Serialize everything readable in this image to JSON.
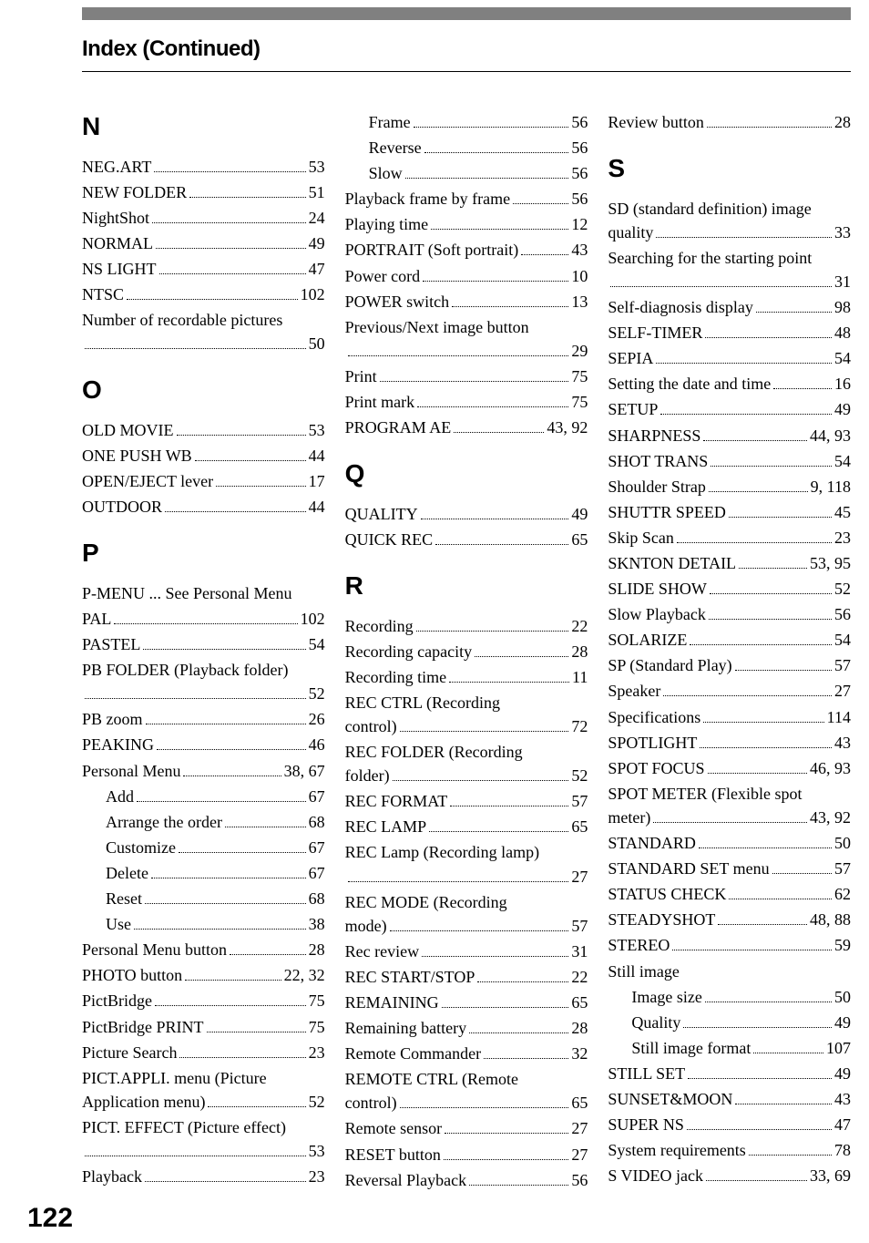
{
  "header": "Index (Continued)",
  "page_number": "122",
  "columns": [
    [
      {
        "type": "letter",
        "text": "N",
        "first": true
      },
      {
        "type": "entry",
        "term": "NEG.ART",
        "page": "53"
      },
      {
        "type": "entry",
        "term": "NEW FOLDER",
        "page": "51"
      },
      {
        "type": "entry",
        "term": "NightShot",
        "page": "24"
      },
      {
        "type": "entry",
        "term": "NORMAL",
        "page": "49"
      },
      {
        "type": "entry",
        "term": "NS LIGHT",
        "page": "47"
      },
      {
        "type": "entry",
        "term": "NTSC",
        "page": "102"
      },
      {
        "type": "wrap",
        "line1": "Number of recordable pictures",
        "page": "50"
      },
      {
        "type": "letter",
        "text": "O"
      },
      {
        "type": "entry",
        "term": "OLD MOVIE",
        "page": "53"
      },
      {
        "type": "entry",
        "term": "ONE PUSH WB",
        "page": "44"
      },
      {
        "type": "entry",
        "term": "OPEN/EJECT lever",
        "page": "17"
      },
      {
        "type": "entry",
        "term": "OUTDOOR",
        "page": "44"
      },
      {
        "type": "letter",
        "text": "P"
      },
      {
        "type": "see",
        "text": "P-MENU ... See Personal Menu"
      },
      {
        "type": "entry",
        "term": "PAL",
        "page": "102"
      },
      {
        "type": "entry",
        "term": "PASTEL",
        "page": "54"
      },
      {
        "type": "wrap",
        "line1": "PB FOLDER (Playback folder)",
        "page": "52"
      },
      {
        "type": "entry",
        "term": "PB zoom",
        "page": "26"
      },
      {
        "type": "entry",
        "term": "PEAKING",
        "page": "46"
      },
      {
        "type": "entry",
        "term": "Personal Menu",
        "page": "38, 67"
      },
      {
        "type": "entry",
        "term": "Add",
        "page": "67",
        "sub": true
      },
      {
        "type": "entry",
        "term": "Arrange the order",
        "page": "68",
        "sub": true
      },
      {
        "type": "entry",
        "term": "Customize",
        "page": "67",
        "sub": true
      },
      {
        "type": "entry",
        "term": "Delete",
        "page": "67",
        "sub": true
      },
      {
        "type": "entry",
        "term": "Reset",
        "page": "68",
        "sub": true
      },
      {
        "type": "entry",
        "term": "Use",
        "page": "38",
        "sub": true
      },
      {
        "type": "entry",
        "term": "Personal Menu button",
        "page": "28"
      },
      {
        "type": "entry",
        "term": "PHOTO button",
        "page": "22, 32"
      },
      {
        "type": "entry",
        "term": "PictBridge",
        "page": "75"
      },
      {
        "type": "entry",
        "term": "PictBridge PRINT",
        "page": "75"
      },
      {
        "type": "entry",
        "term": "Picture Search",
        "page": "23"
      },
      {
        "type": "wrap2",
        "line1": "PICT.APPLI. menu (Picture",
        "line2": "Application menu)",
        "page": "52"
      },
      {
        "type": "wrap",
        "line1": "PICT. EFFECT (Picture effect)",
        "page": "53"
      },
      {
        "type": "entry",
        "term": "Playback",
        "page": "23"
      }
    ],
    [
      {
        "type": "entry",
        "term": "Frame",
        "page": "56",
        "sub": true
      },
      {
        "type": "entry",
        "term": "Reverse",
        "page": "56",
        "sub": true
      },
      {
        "type": "entry",
        "term": "Slow",
        "page": "56",
        "sub": true
      },
      {
        "type": "entry",
        "term": "Playback frame by frame",
        "page": "56"
      },
      {
        "type": "entry",
        "term": "Playing time",
        "page": "12"
      },
      {
        "type": "entry",
        "term": "PORTRAIT (Soft portrait)",
        "page": "43"
      },
      {
        "type": "entry",
        "term": "Power cord",
        "page": "10"
      },
      {
        "type": "entry",
        "term": "POWER switch",
        "page": "13"
      },
      {
        "type": "wrap",
        "line1": "Previous/Next image button",
        "page": "29"
      },
      {
        "type": "entry",
        "term": "Print",
        "page": "75"
      },
      {
        "type": "entry",
        "term": "Print mark",
        "page": "75"
      },
      {
        "type": "entry",
        "term": "PROGRAM AE",
        "page": "43, 92"
      },
      {
        "type": "letter",
        "text": "Q"
      },
      {
        "type": "entry",
        "term": "QUALITY",
        "page": "49"
      },
      {
        "type": "entry",
        "term": "QUICK REC",
        "page": "65"
      },
      {
        "type": "letter",
        "text": "R"
      },
      {
        "type": "entry",
        "term": "Recording",
        "page": "22"
      },
      {
        "type": "entry",
        "term": "Recording capacity",
        "page": "28"
      },
      {
        "type": "entry",
        "term": "Recording time",
        "page": "11"
      },
      {
        "type": "wrap2",
        "line1": "REC CTRL (Recording",
        "line2": "control)",
        "page": "72"
      },
      {
        "type": "wrap2",
        "line1": "REC FOLDER (Recording",
        "line2": "folder)",
        "page": "52"
      },
      {
        "type": "entry",
        "term": "REC FORMAT",
        "page": "57"
      },
      {
        "type": "entry",
        "term": "REC LAMP",
        "page": "65"
      },
      {
        "type": "wrap",
        "line1": "REC Lamp (Recording lamp)",
        "page": "27"
      },
      {
        "type": "wrap2",
        "line1": "REC MODE (Recording",
        "line2": "mode)",
        "page": "57"
      },
      {
        "type": "entry",
        "term": "Rec review",
        "page": "31"
      },
      {
        "type": "entry",
        "term": "REC START/STOP",
        "page": "22"
      },
      {
        "type": "entry",
        "term": "REMAINING",
        "page": "65"
      },
      {
        "type": "entry",
        "term": "Remaining battery",
        "page": "28"
      },
      {
        "type": "entry",
        "term": "Remote Commander",
        "page": "32"
      },
      {
        "type": "wrap2",
        "line1": "REMOTE CTRL (Remote",
        "line2": "control)",
        "page": "65"
      },
      {
        "type": "entry",
        "term": "Remote sensor",
        "page": "27"
      },
      {
        "type": "entry",
        "term": "RESET button",
        "page": "27"
      },
      {
        "type": "entry",
        "term": "Reversal Playback",
        "page": "56"
      }
    ],
    [
      {
        "type": "entry",
        "term": "Review button",
        "page": "28"
      },
      {
        "type": "letter",
        "text": "S"
      },
      {
        "type": "wrap2",
        "line1": "SD (standard definition) image",
        "line2": "quality",
        "page": "33"
      },
      {
        "type": "wrap",
        "line1": "Searching for the starting point",
        "page": "31"
      },
      {
        "type": "entry",
        "term": "Self-diagnosis display",
        "page": "98"
      },
      {
        "type": "entry",
        "term": "SELF-TIMER",
        "page": "48"
      },
      {
        "type": "entry",
        "term": "SEPIA",
        "page": "54"
      },
      {
        "type": "entry",
        "term": "Setting the date and time",
        "page": "16"
      },
      {
        "type": "entry",
        "term": "SETUP",
        "page": "49"
      },
      {
        "type": "entry",
        "term": "SHARPNESS",
        "page": "44, 93"
      },
      {
        "type": "entry",
        "term": "SHOT TRANS",
        "page": "54"
      },
      {
        "type": "entry",
        "term": "Shoulder Strap",
        "page": "9, 118"
      },
      {
        "type": "entry",
        "term": "SHUTTR SPEED",
        "page": "45"
      },
      {
        "type": "entry",
        "term": "Skip Scan",
        "page": "23"
      },
      {
        "type": "entry",
        "term": "SKNTON DETAIL",
        "page": "53, 95"
      },
      {
        "type": "entry",
        "term": "SLIDE SHOW",
        "page": "52"
      },
      {
        "type": "entry",
        "term": "Slow Playback",
        "page": "56"
      },
      {
        "type": "entry",
        "term": "SOLARIZE",
        "page": "54"
      },
      {
        "type": "entry",
        "term": "SP (Standard Play)",
        "page": "57"
      },
      {
        "type": "entry",
        "term": "Speaker",
        "page": "27"
      },
      {
        "type": "entry",
        "term": "Specifications",
        "page": "114"
      },
      {
        "type": "entry",
        "term": "SPOTLIGHT",
        "page": "43"
      },
      {
        "type": "entry",
        "term": "SPOT FOCUS",
        "page": "46, 93"
      },
      {
        "type": "wrap2",
        "line1": "SPOT METER (Flexible spot",
        "line2": "meter)",
        "page": "43, 92"
      },
      {
        "type": "entry",
        "term": "STANDARD",
        "page": "50"
      },
      {
        "type": "entry",
        "term": "STANDARD SET menu",
        "page": "57"
      },
      {
        "type": "entry",
        "term": "STATUS CHECK",
        "page": "62"
      },
      {
        "type": "entry",
        "term": "STEADYSHOT",
        "page": "48, 88"
      },
      {
        "type": "entry",
        "term": "STEREO",
        "page": "59"
      },
      {
        "type": "see",
        "text": "Still image"
      },
      {
        "type": "entry",
        "term": "Image size",
        "page": "50",
        "sub": true
      },
      {
        "type": "entry",
        "term": "Quality",
        "page": "49",
        "sub": true
      },
      {
        "type": "entry",
        "term": "Still image format",
        "page": "107",
        "sub": true
      },
      {
        "type": "entry",
        "term": "STILL SET",
        "page": "49"
      },
      {
        "type": "entry",
        "term": "SUNSET&MOON",
        "page": "43"
      },
      {
        "type": "entry",
        "term": "SUPER NS",
        "page": "47"
      },
      {
        "type": "entry",
        "term": "System requirements",
        "page": "78"
      },
      {
        "type": "entry",
        "term": "S VIDEO jack",
        "page": "33, 69"
      }
    ]
  ]
}
